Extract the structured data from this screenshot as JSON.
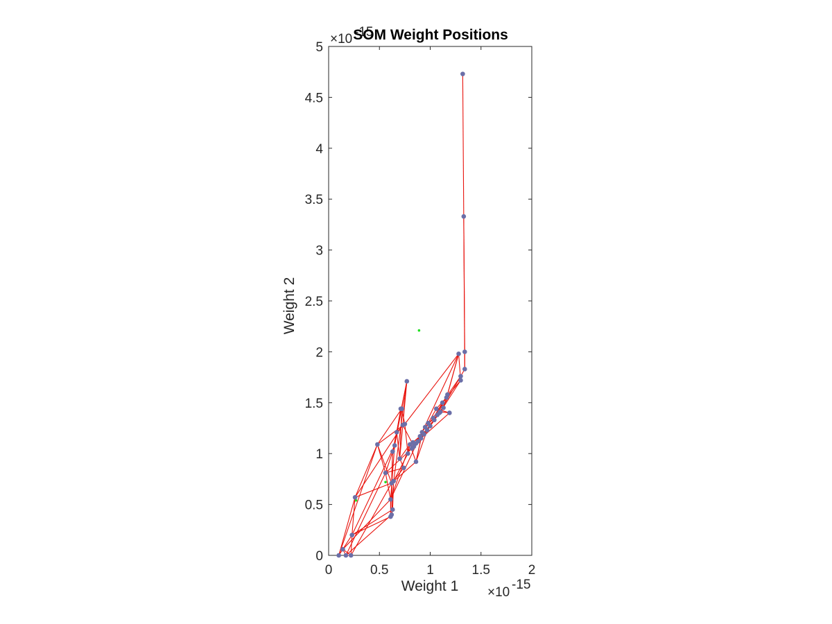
{
  "chart_data": {
    "type": "scatter",
    "title": "SOM Weight Positions",
    "xlabel": "Weight 1",
    "ylabel": "Weight 2",
    "x_multiplier": "×10",
    "x_exponent": "-15",
    "y_multiplier": "×10",
    "y_exponent": "-15",
    "xlim": [
      0,
      2
    ],
    "ylim": [
      0,
      5
    ],
    "xticks": [
      "0",
      "0.5",
      "1",
      "1.5",
      "2"
    ],
    "yticks": [
      "0",
      "0.5",
      "1",
      "1.5",
      "2",
      "2.5",
      "3",
      "3.5",
      "4",
      "4.5",
      "5"
    ],
    "colors": {
      "neurons": "#6b6fa8",
      "links": "#e8120c",
      "inputs": "#22e022",
      "axes": "#262626"
    },
    "series": [
      {
        "kind": "neurons",
        "x": [
          1.32,
          1.33,
          1.34,
          1.34,
          1.3,
          1.3,
          1.28,
          1.19,
          1.17,
          1.13,
          1.1,
          1.07,
          1.04,
          1.0,
          0.97,
          0.94,
          0.91,
          0.88,
          0.86,
          0.84,
          0.82,
          0.8,
          0.78,
          0.75,
          0.72,
          0.7,
          0.67,
          0.65,
          0.63,
          0.62,
          0.63,
          0.62,
          0.61,
          0.61,
          0.56,
          0.48,
          0.26,
          0.23,
          0.22,
          0.17,
          0.14,
          0.1,
          0.64,
          0.73,
          0.86,
          0.77,
          0.92,
          0.95,
          0.98,
          1.03,
          1.06,
          1.12,
          1.16,
          0.9,
          0.83,
          1.09,
          0.71,
          0.74
        ],
        "y": [
          4.73,
          3.33,
          2.0,
          1.83,
          1.76,
          1.72,
          1.98,
          1.4,
          1.58,
          1.45,
          1.41,
          1.38,
          1.33,
          1.27,
          1.23,
          1.19,
          1.15,
          1.12,
          1.1,
          1.07,
          1.05,
          1.09,
          1.0,
          1.29,
          1.44,
          0.95,
          1.21,
          1.08,
          1.02,
          0.71,
          0.45,
          0.4,
          0.38,
          0.55,
          0.81,
          1.09,
          0.57,
          0.2,
          0.0,
          0.0,
          0.06,
          0.0,
          0.73,
          1.28,
          0.92,
          1.71,
          1.21,
          1.26,
          1.3,
          1.35,
          1.44,
          1.5,
          1.55,
          1.17,
          1.11,
          1.4,
          1.44,
          0.86
        ]
      },
      {
        "kind": "inputs",
        "x": [
          0.89,
          0.56,
          0.27
        ],
        "y": [
          2.21,
          0.72,
          0.54
        ]
      }
    ],
    "links": [
      [
        0,
        1
      ],
      [
        1,
        2
      ],
      [
        1,
        3
      ],
      [
        2,
        3
      ],
      [
        3,
        4
      ],
      [
        4,
        5
      ],
      [
        5,
        6
      ],
      [
        6,
        8
      ],
      [
        6,
        33
      ],
      [
        8,
        9
      ],
      [
        9,
        10
      ],
      [
        10,
        11
      ],
      [
        11,
        12
      ],
      [
        12,
        13
      ],
      [
        13,
        14
      ],
      [
        14,
        15
      ],
      [
        15,
        16
      ],
      [
        16,
        17
      ],
      [
        17,
        18
      ],
      [
        18,
        19
      ],
      [
        19,
        20
      ],
      [
        20,
        21
      ],
      [
        21,
        22
      ],
      [
        22,
        23
      ],
      [
        23,
        24
      ],
      [
        24,
        25
      ],
      [
        25,
        26
      ],
      [
        26,
        27
      ],
      [
        27,
        28
      ],
      [
        28,
        29
      ],
      [
        29,
        30
      ],
      [
        30,
        31
      ],
      [
        31,
        32
      ],
      [
        32,
        33
      ],
      [
        33,
        34
      ],
      [
        34,
        35
      ],
      [
        35,
        36
      ],
      [
        36,
        37
      ],
      [
        37,
        38
      ],
      [
        38,
        39
      ],
      [
        39,
        40
      ],
      [
        40,
        41
      ],
      [
        41,
        36
      ],
      [
        36,
        29
      ],
      [
        29,
        44
      ],
      [
        44,
        16
      ],
      [
        16,
        7
      ],
      [
        7,
        10
      ],
      [
        10,
        5
      ],
      [
        5,
        52
      ],
      [
        52,
        50
      ],
      [
        50,
        48
      ],
      [
        48,
        46
      ],
      [
        46,
        53
      ],
      [
        53,
        54
      ],
      [
        54,
        22
      ],
      [
        22,
        42
      ],
      [
        42,
        30
      ],
      [
        30,
        37
      ],
      [
        37,
        27
      ],
      [
        27,
        45
      ],
      [
        45,
        25
      ],
      [
        25,
        57
      ],
      [
        57,
        34
      ],
      [
        34,
        20
      ],
      [
        20,
        47
      ],
      [
        47,
        49
      ],
      [
        49,
        51
      ],
      [
        51,
        4
      ],
      [
        4,
        55
      ],
      [
        55,
        13
      ],
      [
        13,
        19
      ],
      [
        19,
        43
      ],
      [
        43,
        23
      ],
      [
        23,
        26
      ],
      [
        26,
        56
      ],
      [
        56,
        24
      ],
      [
        24,
        35
      ],
      [
        35,
        29
      ],
      [
        29,
        38
      ],
      [
        38,
        40
      ],
      [
        40,
        33
      ],
      [
        33,
        21
      ],
      [
        21,
        44
      ],
      [
        44,
        14
      ],
      [
        14,
        12
      ],
      [
        12,
        9
      ],
      [
        9,
        11
      ],
      [
        11,
        8
      ],
      [
        8,
        6
      ],
      [
        6,
        23
      ],
      [
        23,
        35
      ],
      [
        35,
        41
      ],
      [
        41,
        37
      ],
      [
        37,
        32
      ],
      [
        32,
        28
      ],
      [
        28,
        45
      ],
      [
        45,
        42
      ],
      [
        42,
        31
      ],
      [
        31,
        39
      ],
      [
        39,
        34
      ],
      [
        34,
        28
      ],
      [
        27,
        33
      ],
      [
        43,
        36
      ],
      [
        25,
        21
      ],
      [
        57,
        29
      ],
      [
        53,
        13
      ],
      [
        15,
        48
      ],
      [
        17,
        11
      ],
      [
        18,
        46
      ],
      [
        54,
        14
      ],
      [
        47,
        10
      ],
      [
        49,
        52
      ],
      [
        50,
        7
      ],
      [
        55,
        12
      ],
      [
        9,
        51
      ],
      [
        16,
        44
      ]
    ]
  }
}
